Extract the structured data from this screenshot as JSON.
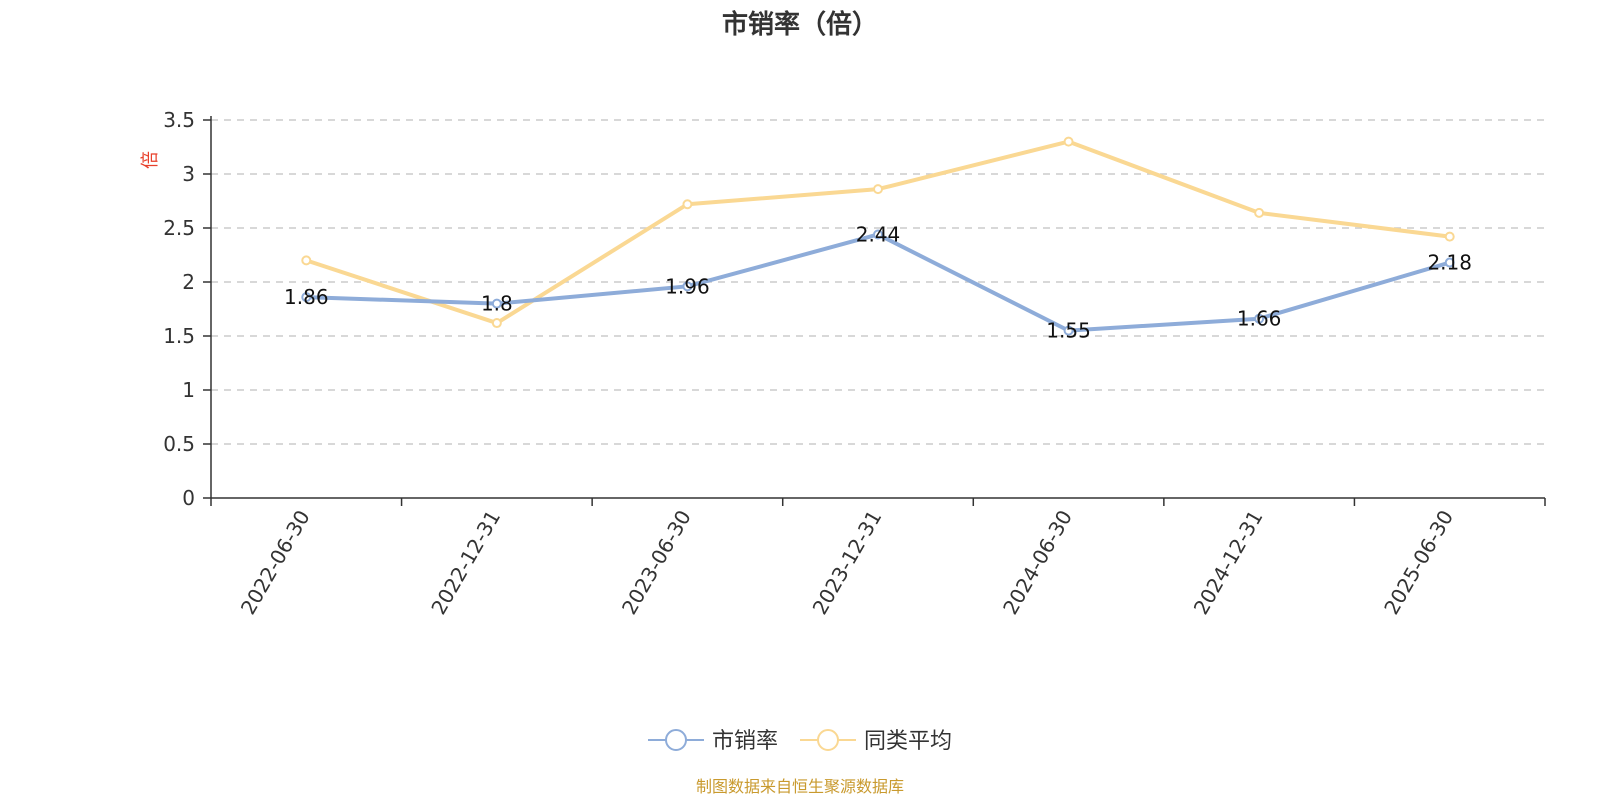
{
  "chart_data": {
    "type": "line",
    "title": "市销率（倍）",
    "ylabel": "倍",
    "categories": [
      "2022-06-30",
      "2022-12-31",
      "2023-06-30",
      "2023-12-31",
      "2024-06-30",
      "2024-12-31",
      "2025-06-30"
    ],
    "ylim": [
      0,
      3.5
    ],
    "yticks": [
      "0",
      "0.5",
      "1",
      "1.5",
      "2",
      "2.5",
      "3",
      "3.5"
    ],
    "grid": true,
    "legend_position": "bottom-center",
    "series": [
      {
        "name": "市销率",
        "values": [
          1.86,
          1.8,
          1.96,
          2.44,
          1.55,
          1.66,
          2.18
        ],
        "labels": [
          "1.86",
          "1.8",
          "1.96",
          "2.44",
          "1.55",
          "1.66",
          "2.18"
        ],
        "color": "#8eacd9"
      },
      {
        "name": "同类平均",
        "values": [
          2.2,
          1.62,
          2.72,
          2.86,
          3.3,
          2.64,
          2.42
        ],
        "color": "#fad893"
      }
    ]
  },
  "footer": {
    "source": "制图数据来自恒生聚源数据库"
  },
  "colors": {
    "axis": "#333333",
    "grid": "#cccccc",
    "ylabel": "#e8402b",
    "source": "#c99a2e"
  }
}
